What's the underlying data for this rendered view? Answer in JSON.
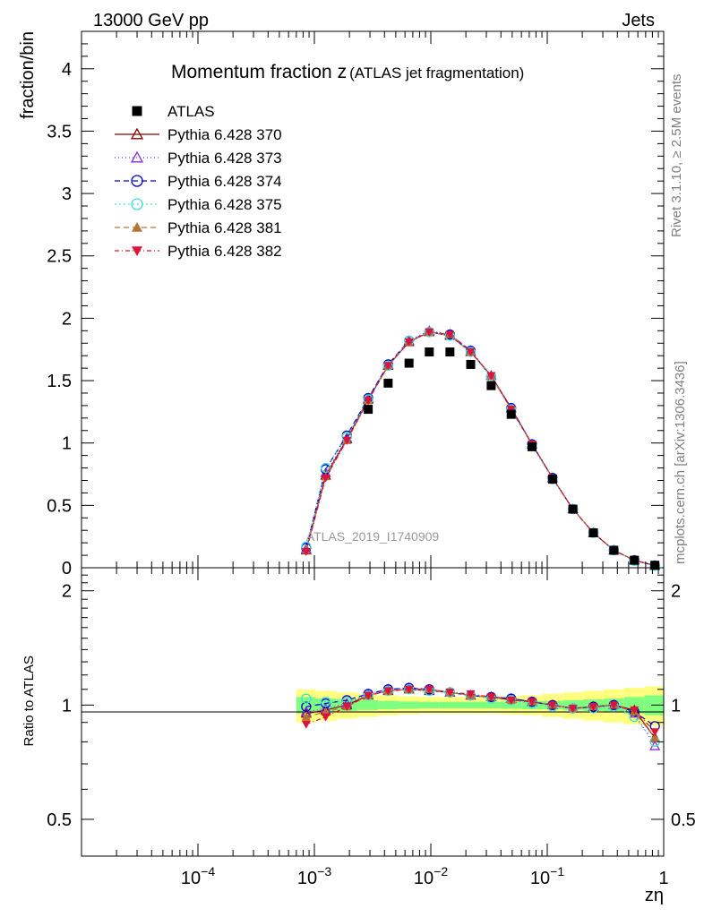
{
  "header": {
    "beam": "13000 GeV pp",
    "process": "Jets"
  },
  "side": {
    "rivet": "Rivet 3.1.10, ≥ 2.5M events",
    "source": "mcplots.cern.ch [arXiv:1306.3436]"
  },
  "chart_data": {
    "type": "line",
    "title": "Momentum fraction z",
    "subtitle": "(ATLAS jet fragmentation)",
    "analysis": "ATLAS_2019_I1740909",
    "xlabel": "zη",
    "ylabel": "fraction/bin",
    "ratio_ylabel": "Ratio to ATLAS",
    "xscale": "log",
    "xlim": [
      1e-05,
      1
    ],
    "ylim": [
      0,
      4.3
    ],
    "ratio_ylim": [
      0.4,
      2.3
    ],
    "x_tick_labels": [
      "10^-4",
      "10^-3",
      "10^-2",
      "10^-1",
      "1"
    ],
    "y_tick_labels": [
      "0",
      "0.5",
      "1",
      "1.5",
      "2",
      "2.5",
      "3",
      "3.5",
      "4"
    ],
    "ratio_tick_labels": [
      "0.5",
      "1",
      "2"
    ],
    "legend_position": "top-left",
    "x": [
      0.00085,
      0.00125,
      0.0019,
      0.0029,
      0.0043,
      0.0065,
      0.0097,
      0.0146,
      0.022,
      0.033,
      0.049,
      0.074,
      0.111,
      0.166,
      0.249,
      0.373,
      0.56,
      0.84
    ],
    "reference": {
      "name": "ATLAS",
      "values": [
        null,
        null,
        null,
        1.27,
        1.48,
        1.64,
        1.73,
        1.73,
        1.63,
        1.46,
        1.23,
        0.97,
        0.71,
        0.47,
        0.28,
        0.14,
        0.06,
        0.02
      ],
      "color": "#000000",
      "marker": "square"
    },
    "series": [
      {
        "name": "Pythia 6.428 370",
        "color": "#8b0000",
        "dash": "",
        "marker": "triangle-open",
        "values": [
          0.14,
          0.74,
          1.03,
          1.35,
          1.62,
          1.81,
          1.89,
          1.86,
          1.73,
          1.54,
          1.28,
          0.99,
          0.72,
          0.47,
          0.28,
          0.14,
          0.06,
          0.017
        ],
        "ratio": [
          0.95,
          0.97,
          1.0,
          1.06,
          1.09,
          1.1,
          1.09,
          1.08,
          1.06,
          1.05,
          1.04,
          1.02,
          1.0,
          0.98,
          0.99,
          1.0,
          0.97,
          0.82
        ]
      },
      {
        "name": "Pythia 6.428 373",
        "color": "#8a2be2",
        "dash": "1,3",
        "marker": "triangle-open",
        "values": [
          0.15,
          0.76,
          1.04,
          1.36,
          1.63,
          1.82,
          1.9,
          1.87,
          1.74,
          1.54,
          1.28,
          0.99,
          0.72,
          0.47,
          0.28,
          0.14,
          0.06,
          0.016
        ],
        "ratio": [
          0.96,
          0.98,
          1.01,
          1.07,
          1.1,
          1.11,
          1.1,
          1.08,
          1.06,
          1.05,
          1.04,
          1.02,
          1.0,
          0.98,
          0.99,
          1.0,
          0.95,
          0.78
        ]
      },
      {
        "name": "Pythia 6.428 374",
        "color": "#0000cd",
        "dash": "6,4",
        "marker": "circle-open",
        "values": [
          0.16,
          0.79,
          1.06,
          1.36,
          1.63,
          1.82,
          1.89,
          1.87,
          1.74,
          1.53,
          1.28,
          0.99,
          0.72,
          0.47,
          0.28,
          0.14,
          0.06,
          0.018
        ],
        "ratio": [
          0.99,
          1.01,
          1.03,
          1.07,
          1.1,
          1.11,
          1.1,
          1.08,
          1.06,
          1.05,
          1.04,
          1.02,
          1.0,
          0.98,
          0.99,
          1.0,
          0.96,
          0.88
        ]
      },
      {
        "name": "Pythia 6.428 375",
        "color": "#40e0d0",
        "dash": "2,3",
        "marker": "circle-open",
        "values": [
          0.17,
          0.8,
          1.05,
          1.35,
          1.62,
          1.82,
          1.89,
          1.86,
          1.73,
          1.53,
          1.27,
          0.98,
          0.71,
          0.47,
          0.28,
          0.14,
          0.055,
          0.016
        ],
        "ratio": [
          1.04,
          1.02,
          1.02,
          1.06,
          1.09,
          1.1,
          1.09,
          1.08,
          1.06,
          1.04,
          1.03,
          1.01,
          0.99,
          0.98,
          0.98,
          0.99,
          0.93,
          0.8
        ]
      },
      {
        "name": "Pythia 6.428 381",
        "color": "#b87333",
        "dash": "6,4",
        "marker": "triangle-filled",
        "values": [
          0.14,
          0.73,
          1.02,
          1.34,
          1.62,
          1.81,
          1.89,
          1.87,
          1.73,
          1.54,
          1.27,
          0.99,
          0.72,
          0.47,
          0.28,
          0.14,
          0.06,
          0.017
        ],
        "ratio": [
          0.93,
          0.96,
          0.99,
          1.06,
          1.09,
          1.1,
          1.1,
          1.08,
          1.06,
          1.05,
          1.03,
          1.02,
          1.0,
          0.98,
          0.99,
          1.0,
          0.96,
          0.82
        ]
      },
      {
        "name": "Pythia 6.428 382",
        "color": "#dc143c",
        "dash": "5,3,1,3",
        "marker": "triangle-down-filled",
        "values": [
          0.13,
          0.72,
          1.02,
          1.34,
          1.62,
          1.81,
          1.89,
          1.87,
          1.73,
          1.54,
          1.27,
          0.99,
          0.72,
          0.47,
          0.28,
          0.14,
          0.06,
          0.017
        ],
        "ratio": [
          0.89,
          0.93,
          0.99,
          1.06,
          1.09,
          1.1,
          1.1,
          1.08,
          1.07,
          1.05,
          1.03,
          1.02,
          1.0,
          0.98,
          0.99,
          1.0,
          0.97,
          0.85
        ]
      }
    ],
    "uncertainty_band": {
      "x_range": [
        0.0007,
        1.0
      ],
      "inner_color": "#7fff7f",
      "outer_color": "#ffff7f",
      "inner_halfwidth": [
        0.05,
        0.04,
        0.035,
        0.03,
        0.025,
        0.022,
        0.02,
        0.02,
        0.02,
        0.02,
        0.022,
        0.025,
        0.025,
        0.03,
        0.035,
        0.04,
        0.05,
        0.06
      ],
      "outer_halfwidth": [
        0.1,
        0.09,
        0.08,
        0.07,
        0.06,
        0.055,
        0.05,
        0.05,
        0.05,
        0.05,
        0.055,
        0.06,
        0.07,
        0.08,
        0.09,
        0.1,
        0.11,
        0.12
      ]
    }
  }
}
